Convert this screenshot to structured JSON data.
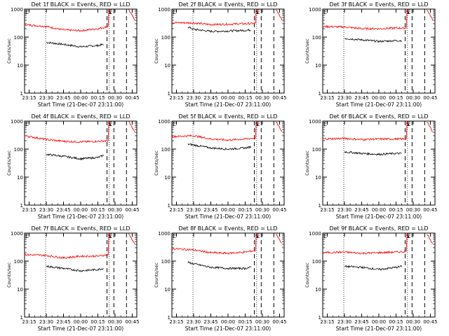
{
  "figure": {
    "xlabel": "Start Time (21-Dec-07 23:11:00)",
    "ylabel": "Counts/sec",
    "x_ticks": [
      "23:15",
      "23:30",
      "23:45",
      "00:00",
      "00:15",
      "00:30",
      "00:45"
    ],
    "y_ticks": [
      "1",
      "10",
      "100",
      "1000"
    ],
    "marker_labels": [
      "S",
      "E"
    ],
    "colors": {
      "events": "#000000",
      "lld": "#ff0000"
    }
  },
  "chart_data": [
    {
      "type": "line",
      "title": "Det 1f BLACK = Events, RED = LLD",
      "xlabel": "Start Time (21-Dec-07 23:11:00)",
      "ylabel": "Counts/sec",
      "yscale": "log",
      "ylim": [
        1,
        1000
      ],
      "xlim": [
        "23:11",
        "00:49"
      ],
      "grid": false,
      "series": [
        {
          "color": "#000000",
          "x": [
            "23:30",
            "23:45",
            "00:00",
            "00:15",
            "00:20"
          ],
          "values": [
            65,
            55,
            45,
            50,
            55
          ]
        },
        {
          "color": "#ff0000",
          "x": [
            "23:11",
            "23:30",
            "23:45",
            "00:00",
            "00:15",
            "00:24"
          ],
          "values": [
            280,
            240,
            180,
            170,
            200,
            240
          ]
        }
      ]
    },
    {
      "type": "line",
      "title": "Det 2f BLACK = Events, RED = LLD",
      "xlabel": "Start Time (21-Dec-07 23:11:00)",
      "ylabel": "Counts/sec",
      "yscale": "log",
      "ylim": [
        1,
        1000
      ],
      "xlim": [
        "23:11",
        "00:49"
      ],
      "grid": false,
      "series": [
        {
          "color": "#000000",
          "x": [
            "23:25",
            "23:30",
            "23:45",
            "00:00",
            "00:15",
            "00:20"
          ],
          "values": [
            230,
            190,
            160,
            165,
            175,
            180
          ]
        },
        {
          "color": "#ff0000",
          "x": [
            "23:11",
            "23:30",
            "23:45",
            "00:00",
            "00:15",
            "00:24"
          ],
          "values": [
            330,
            320,
            280,
            290,
            300,
            310
          ]
        }
      ]
    },
    {
      "type": "line",
      "title": "Det 3f BLACK = Events, RED = LLD",
      "xlabel": "Start Time (21-Dec-07 23:11:00)",
      "ylabel": "Counts/sec",
      "yscale": "log",
      "ylim": [
        1,
        1000
      ],
      "xlim": [
        "23:11",
        "00:49"
      ],
      "grid": false,
      "series": [
        {
          "color": "#000000",
          "x": [
            "23:30",
            "23:45",
            "00:00",
            "00:15",
            "00:20"
          ],
          "values": [
            90,
            80,
            70,
            75,
            75
          ]
        },
        {
          "color": "#ff0000",
          "x": [
            "23:11",
            "23:30",
            "23:45",
            "00:00",
            "00:15",
            "00:24"
          ],
          "values": [
            240,
            230,
            200,
            200,
            210,
            210
          ]
        }
      ]
    },
    {
      "type": "line",
      "title": "Det 4f BLACK = Events, RED = LLD",
      "xlabel": "Start Time (21-Dec-07 23:11:00)",
      "ylabel": "Counts/sec",
      "yscale": "log",
      "ylim": [
        1,
        1000
      ],
      "xlim": [
        "23:11",
        "00:49"
      ],
      "grid": false,
      "series": [
        {
          "color": "#000000",
          "x": [
            "23:30",
            "23:45",
            "00:00",
            "00:15",
            "00:20"
          ],
          "values": [
            65,
            55,
            45,
            50,
            60
          ]
        },
        {
          "color": "#ff0000",
          "x": [
            "23:11",
            "23:30",
            "23:45",
            "00:00",
            "00:15",
            "00:24"
          ],
          "values": [
            300,
            220,
            190,
            180,
            190,
            200
          ]
        }
      ]
    },
    {
      "type": "line",
      "title": "Det 5f BLACK = Events, RED = LLD",
      "xlabel": "Start Time (21-Dec-07 23:11:00)",
      "ylabel": "Counts/sec",
      "yscale": "log",
      "ylim": [
        1,
        1000
      ],
      "xlim": [
        "23:11",
        "00:49"
      ],
      "grid": false,
      "series": [
        {
          "color": "#000000",
          "x": [
            "23:25",
            "23:30",
            "23:45",
            "00:00",
            "00:15",
            "00:20"
          ],
          "values": [
            150,
            140,
            110,
            100,
            110,
            120
          ]
        },
        {
          "color": "#ff0000",
          "x": [
            "23:11",
            "23:30",
            "23:45",
            "00:00",
            "00:15",
            "00:24"
          ],
          "values": [
            280,
            300,
            230,
            210,
            230,
            250
          ]
        }
      ]
    },
    {
      "type": "line",
      "title": "Det 6f BLACK = Events, RED = LLD",
      "xlabel": "Start Time (21-Dec-07 23:11:00)",
      "ylabel": "Counts/sec",
      "yscale": "log",
      "ylim": [
        1,
        1000
      ],
      "xlim": [
        "23:11",
        "00:49"
      ],
      "grid": false,
      "series": [
        {
          "color": "#000000",
          "x": [
            "23:30",
            "23:45",
            "00:00",
            "00:15",
            "00:20"
          ],
          "values": [
            80,
            70,
            65,
            70,
            70
          ]
        },
        {
          "color": "#ff0000",
          "x": [
            "23:11",
            "23:30",
            "23:45",
            "00:00",
            "00:15",
            "00:24"
          ],
          "values": [
            230,
            240,
            220,
            230,
            230,
            230
          ]
        }
      ]
    },
    {
      "type": "line",
      "title": "Det 7f BLACK = Events, RED = LLD",
      "xlabel": "Start Time (21-Dec-07 23:11:00)",
      "ylabel": "Counts/sec",
      "yscale": "log",
      "ylim": [
        1,
        1000
      ],
      "xlim": [
        "23:11",
        "00:49"
      ],
      "grid": false,
      "series": [
        {
          "color": "#000000",
          "x": [
            "23:30",
            "23:45",
            "00:00",
            "00:15",
            "00:20"
          ],
          "values": [
            65,
            55,
            45,
            50,
            55
          ]
        },
        {
          "color": "#ff0000",
          "x": [
            "23:11",
            "23:30",
            "23:45",
            "00:00",
            "00:15",
            "00:24"
          ],
          "values": [
            170,
            160,
            130,
            150,
            150,
            170
          ]
        }
      ]
    },
    {
      "type": "line",
      "title": "Det 8f BLACK = Events, RED = LLD",
      "xlabel": "Start Time (21-Dec-07 23:11:00)",
      "ylabel": "Counts/sec",
      "yscale": "log",
      "ylim": [
        1,
        1000
      ],
      "xlim": [
        "23:11",
        "00:49"
      ],
      "grid": false,
      "series": [
        {
          "color": "#000000",
          "x": [
            "23:25",
            "23:30",
            "23:45",
            "00:00",
            "00:15",
            "00:20"
          ],
          "values": [
            90,
            80,
            60,
            55,
            55,
            60
          ]
        },
        {
          "color": "#ff0000",
          "x": [
            "23:11",
            "23:30",
            "23:45",
            "00:00",
            "00:15",
            "00:24"
          ],
          "values": [
            280,
            250,
            200,
            190,
            210,
            240
          ]
        }
      ]
    },
    {
      "type": "line",
      "title": "Det 9f BLACK = Events, RED = LLD",
      "xlabel": "Start Time (21-Dec-07 23:11:00)",
      "ylabel": "Counts/sec",
      "yscale": "log",
      "ylim": [
        1,
        1000
      ],
      "xlim": [
        "23:11",
        "00:49"
      ],
      "grid": false,
      "series": [
        {
          "color": "#000000",
          "x": [
            "23:30",
            "23:45",
            "00:00",
            "00:15",
            "00:20"
          ],
          "values": [
            65,
            60,
            50,
            60,
            65
          ]
        },
        {
          "color": "#ff0000",
          "x": [
            "23:11",
            "23:30",
            "23:45",
            "00:00",
            "00:15",
            "00:24"
          ],
          "values": [
            200,
            210,
            190,
            200,
            210,
            220
          ]
        }
      ]
    }
  ]
}
